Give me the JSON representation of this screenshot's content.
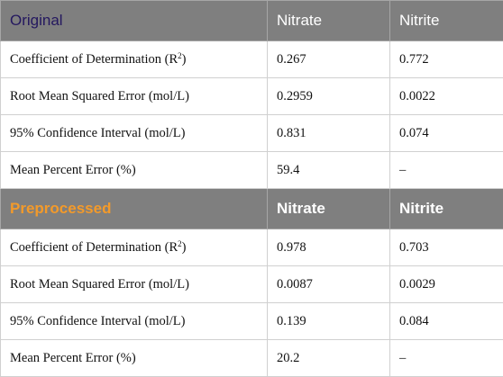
{
  "sections": [
    {
      "title": "Original",
      "col_nitrate": "Nitrate",
      "col_nitrite": "Nitrite",
      "rows": [
        {
          "metric": "Coefficient of Determination (R",
          "sup": "2",
          "metric_end": ")",
          "nitrate": "0.267",
          "nitrite": "0.772"
        },
        {
          "metric": "Root Mean Squared Error (mol/L)",
          "nitrate": "0.2959",
          "nitrite": "0.0022"
        },
        {
          "metric": "95% Confidence Interval (mol/L)",
          "nitrate": "0.831",
          "nitrite": "0.074"
        },
        {
          "metric": "Mean Percent Error (%)",
          "nitrate": "59.4",
          "nitrite": "–"
        }
      ]
    },
    {
      "title": "Preprocessed",
      "col_nitrate": "Nitrate",
      "col_nitrite": "Nitrite",
      "rows": [
        {
          "metric": "Coefficient of Determination (R",
          "sup": "2",
          "metric_end": ")",
          "nitrate": "0.978",
          "nitrite": "0.703"
        },
        {
          "metric": "Root Mean Squared Error (mol/L)",
          "nitrate": "0.0087",
          "nitrite": "0.0029"
        },
        {
          "metric": "95% Confidence Interval (mol/L)",
          "nitrate": "0.139",
          "nitrite": "0.084"
        },
        {
          "metric": "Mean Percent Error (%)",
          "nitrate": "20.2",
          "nitrite": "–"
        }
      ]
    }
  ],
  "colors": {
    "header_bg": "#7f7f7f",
    "original_title": "#24185f",
    "preprocessed_title": "#f39a2a"
  }
}
